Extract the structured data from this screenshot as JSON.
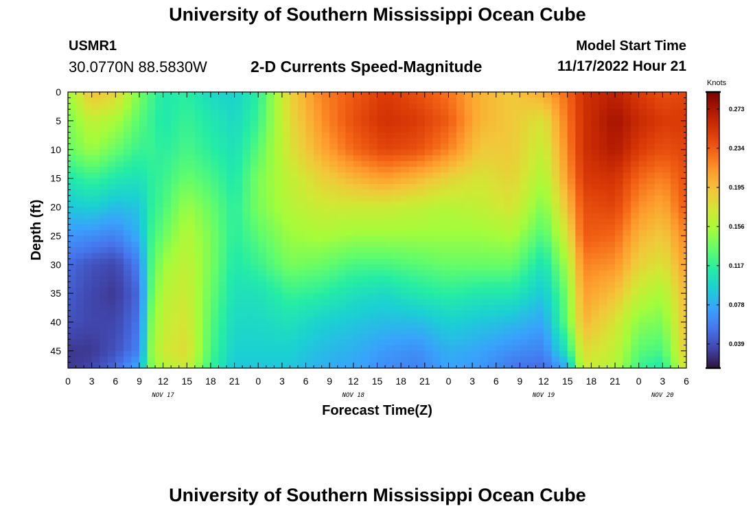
{
  "header": {
    "title": "University of Southern Mississippi Ocean Cube",
    "station_id": "USMR1",
    "station_coords": "30.0770N  88.5830W",
    "subtitle": "2-D Currents Speed-Magnitude",
    "model_start_label": "Model Start Time",
    "model_start_value": "11/17/2022 Hour 21"
  },
  "footer": {
    "title": "University of Southern Mississippi Ocean Cube"
  },
  "chart_data": {
    "type": "heatmap",
    "title": "2-D Currents Speed-Magnitude",
    "xlabel": "Forecast Time(Z)",
    "ylabel": "Depth (ft)",
    "x_tick_labels": [
      "0",
      "3",
      "6",
      "9",
      "12",
      "15",
      "18",
      "21",
      "0",
      "3",
      "6",
      "9",
      "12",
      "15",
      "18",
      "21",
      "0",
      "3",
      "6",
      "9",
      "12",
      "15",
      "18",
      "21",
      "0",
      "3",
      "6"
    ],
    "x_range_hours": [
      0,
      78
    ],
    "date_labels": [
      {
        "text": "NOV 17",
        "hour": 12
      },
      {
        "text": "NOV 18",
        "hour": 36
      },
      {
        "text": "NOV 19",
        "hour": 60
      },
      {
        "text": "NOV 20",
        "hour": 75
      }
    ],
    "y_ticks": [
      0,
      5,
      10,
      15,
      20,
      25,
      30,
      35,
      40,
      45
    ],
    "y_range": [
      0,
      48
    ],
    "y_inverted": true,
    "colorbar": {
      "unit": "Knots",
      "ticks": [
        0.039,
        0.078,
        0.117,
        0.156,
        0.195,
        0.234,
        0.273
      ],
      "range": [
        0.015,
        0.29
      ],
      "colors": [
        "#30123b",
        "#4145ab",
        "#4675ed",
        "#39a2fc",
        "#1bcfd4",
        "#24eca6",
        "#61fc6c",
        "#a4fc3b",
        "#d1e834",
        "#f3c63a",
        "#fe9b2d",
        "#f36315",
        "#d93806",
        "#b11901",
        "#7a0402"
      ]
    },
    "field": {
      "hours": [
        0,
        3,
        6,
        9,
        10.5,
        12,
        15,
        18,
        21,
        24,
        28,
        32,
        36,
        40,
        44,
        48,
        52,
        56,
        60,
        63,
        65,
        69,
        72,
        75,
        78
      ],
      "depths": [
        0,
        5,
        10,
        15,
        20,
        25,
        30,
        35,
        40,
        45,
        48
      ],
      "values": [
        [
          0.15,
          0.195,
          0.185,
          0.14,
          0.125,
          0.11,
          0.115,
          0.1,
          0.095,
          0.115,
          0.185,
          0.22,
          0.235,
          0.25,
          0.24,
          0.225,
          0.2,
          0.19,
          0.205,
          0.23,
          0.255,
          0.265,
          0.25,
          0.24,
          0.245
        ],
        [
          0.14,
          0.165,
          0.155,
          0.13,
          0.12,
          0.11,
          0.12,
          0.11,
          0.1,
          0.12,
          0.18,
          0.215,
          0.24,
          0.255,
          0.25,
          0.235,
          0.2,
          0.19,
          0.175,
          0.225,
          0.255,
          0.275,
          0.26,
          0.25,
          0.25
        ],
        [
          0.135,
          0.15,
          0.135,
          0.12,
          0.12,
          0.115,
          0.125,
          0.115,
          0.105,
          0.13,
          0.175,
          0.205,
          0.23,
          0.245,
          0.24,
          0.22,
          0.19,
          0.19,
          0.165,
          0.22,
          0.255,
          0.27,
          0.25,
          0.24,
          0.245
        ],
        [
          0.11,
          0.12,
          0.11,
          0.105,
          0.115,
          0.12,
          0.135,
          0.125,
          0.11,
          0.14,
          0.165,
          0.185,
          0.2,
          0.21,
          0.2,
          0.185,
          0.175,
          0.185,
          0.155,
          0.21,
          0.25,
          0.255,
          0.23,
          0.22,
          0.24
        ],
        [
          0.09,
          0.095,
          0.085,
          0.09,
          0.115,
          0.125,
          0.15,
          0.135,
          0.115,
          0.14,
          0.16,
          0.17,
          0.17,
          0.17,
          0.165,
          0.16,
          0.165,
          0.175,
          0.14,
          0.195,
          0.24,
          0.245,
          0.215,
          0.205,
          0.235
        ],
        [
          0.07,
          0.065,
          0.06,
          0.08,
          0.12,
          0.135,
          0.16,
          0.14,
          0.115,
          0.13,
          0.15,
          0.155,
          0.15,
          0.15,
          0.15,
          0.15,
          0.15,
          0.155,
          0.125,
          0.175,
          0.235,
          0.23,
          0.2,
          0.19,
          0.22
        ],
        [
          0.05,
          0.04,
          0.035,
          0.06,
          0.125,
          0.15,
          0.165,
          0.14,
          0.11,
          0.12,
          0.14,
          0.135,
          0.125,
          0.125,
          0.13,
          0.135,
          0.135,
          0.135,
          0.105,
          0.155,
          0.22,
          0.215,
          0.185,
          0.175,
          0.21
        ],
        [
          0.045,
          0.035,
          0.03,
          0.05,
          0.13,
          0.16,
          0.17,
          0.135,
          0.105,
          0.105,
          0.12,
          0.115,
          0.105,
          0.1,
          0.11,
          0.115,
          0.11,
          0.11,
          0.09,
          0.14,
          0.21,
          0.195,
          0.165,
          0.155,
          0.2
        ],
        [
          0.04,
          0.035,
          0.035,
          0.055,
          0.14,
          0.165,
          0.175,
          0.13,
          0.1,
          0.1,
          0.105,
          0.095,
          0.09,
          0.085,
          0.085,
          0.095,
          0.09,
          0.085,
          0.075,
          0.135,
          0.2,
          0.175,
          0.145,
          0.14,
          0.195
        ],
        [
          0.03,
          0.03,
          0.04,
          0.06,
          0.145,
          0.17,
          0.18,
          0.125,
          0.095,
          0.095,
          0.095,
          0.085,
          0.08,
          0.07,
          0.065,
          0.08,
          0.075,
          0.065,
          0.06,
          0.11,
          0.18,
          0.165,
          0.13,
          0.125,
          0.19
        ],
        [
          0.03,
          0.035,
          0.05,
          0.08,
          0.14,
          0.16,
          0.17,
          0.12,
          0.09,
          0.09,
          0.09,
          0.08,
          0.075,
          0.065,
          0.06,
          0.075,
          0.07,
          0.055,
          0.05,
          0.08,
          0.17,
          0.16,
          0.12,
          0.11,
          0.18
        ]
      ]
    }
  }
}
